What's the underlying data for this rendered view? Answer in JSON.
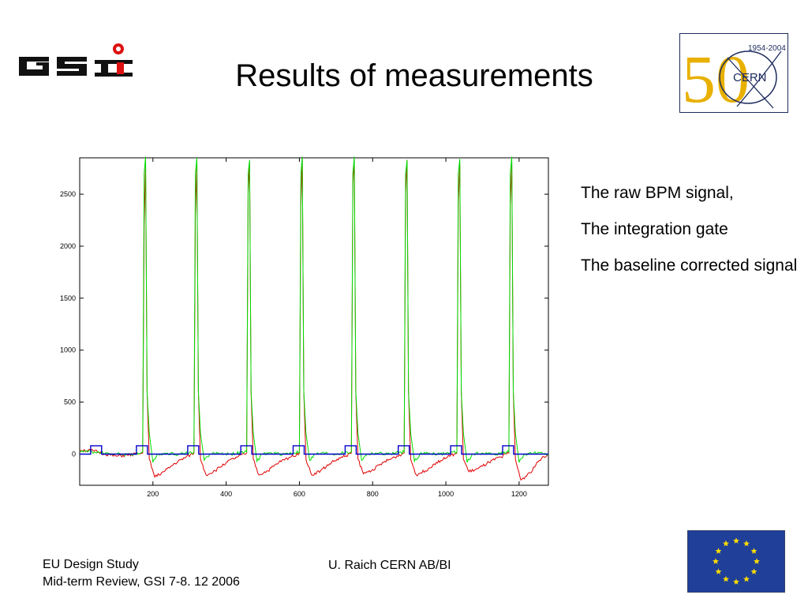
{
  "title": "Results of measurements",
  "logos": {
    "gsi": "GSI",
    "cern_years": "1954-2004",
    "cern_name": "CERN",
    "cern_number": "50"
  },
  "bullets": [
    "The raw BPM signal,",
    "The integration gate",
    "The baseline corrected signal"
  ],
  "footer": {
    "left_line1": "EU Design Study",
    "left_line2": "Mid-term Review, GSI 7-8. 12 2006",
    "center": "U. Raich CERN AB/BI"
  },
  "colors": {
    "raw_signal": "#e00000",
    "corrected_signal": "#00dd00",
    "gate": "#0000cc",
    "cern_blue": "#1d2b5e",
    "cern_gold": "#e8b000",
    "eu_blue": "#1f3f99",
    "eu_star": "#ffdd00"
  },
  "chart_data": {
    "type": "line",
    "title": "",
    "xlabel": "",
    "ylabel": "",
    "xlim": [
      0,
      1280
    ],
    "ylim": [
      -300,
      2850
    ],
    "xticks": [
      200,
      400,
      600,
      800,
      1000,
      1200
    ],
    "yticks": [
      0,
      500,
      1000,
      1500,
      2000,
      2500
    ],
    "pulse_positions": [
      178,
      318,
      462,
      606,
      748,
      892,
      1036,
      1178
    ],
    "series": [
      {
        "key": "raw",
        "peak": 2850,
        "undershoot": -250,
        "x": [
          0,
          40,
          70,
          100,
          130,
          160,
          172,
          176,
          180,
          184,
          190,
          205,
          230,
          260,
          290,
          312,
          316,
          320,
          324,
          330,
          345,
          370,
          400,
          430,
          456,
          460,
          464,
          468,
          474,
          489,
          514,
          544,
          574,
          600,
          604,
          608,
          612,
          618,
          633,
          658,
          688,
          718,
          742,
          746,
          750,
          754,
          760,
          775,
          800,
          830,
          860,
          886,
          890,
          894,
          898,
          904,
          919,
          944,
          974,
          1004,
          1030,
          1034,
          1038,
          1042,
          1048,
          1063,
          1088,
          1118,
          1148,
          1172,
          1176,
          1180,
          1184,
          1190,
          1205,
          1230,
          1255,
          1280
        ],
        "y": [
          40,
          30,
          0,
          -20,
          -10,
          0,
          10,
          2200,
          2800,
          600,
          -50,
          -220,
          -170,
          -90,
          -30,
          10,
          2300,
          2800,
          600,
          -50,
          -200,
          -160,
          -80,
          -30,
          10,
          2500,
          2800,
          600,
          -50,
          -200,
          -160,
          -80,
          -30,
          10,
          2400,
          2850,
          600,
          -50,
          -200,
          -160,
          -80,
          -30,
          10,
          2600,
          2850,
          600,
          -50,
          -190,
          -150,
          -80,
          -30,
          10,
          2500,
          2830,
          600,
          -50,
          -200,
          -160,
          -80,
          -30,
          10,
          2400,
          2800,
          600,
          -50,
          -170,
          -140,
          -80,
          -30,
          10,
          2400,
          2800,
          600,
          -50,
          -250,
          -180,
          -60,
          0
        ]
      },
      {
        "key": "corrected",
        "peak": 2860,
        "undershoot": -80,
        "x": [
          0,
          40,
          70,
          100,
          130,
          160,
          172,
          176,
          180,
          184,
          190,
          200,
          215,
          240,
          270,
          312,
          316,
          320,
          324,
          330,
          340,
          355,
          380,
          410,
          456,
          460,
          464,
          468,
          474,
          484,
          499,
          524,
          554,
          600,
          604,
          608,
          612,
          618,
          628,
          643,
          668,
          698,
          742,
          746,
          750,
          754,
          760,
          770,
          785,
          810,
          840,
          886,
          890,
          894,
          898,
          904,
          914,
          929,
          954,
          984,
          1030,
          1034,
          1038,
          1042,
          1048,
          1058,
          1073,
          1098,
          1128,
          1172,
          1176,
          1180,
          1184,
          1190,
          1200,
          1215,
          1240,
          1280
        ],
        "y": [
          30,
          20,
          10,
          0,
          0,
          0,
          20,
          2700,
          2860,
          600,
          200,
          -80,
          0,
          10,
          0,
          20,
          2700,
          2850,
          600,
          200,
          -60,
          0,
          10,
          0,
          20,
          2700,
          2830,
          600,
          200,
          -70,
          0,
          10,
          0,
          20,
          2700,
          2860,
          600,
          200,
          -60,
          0,
          10,
          0,
          20,
          2700,
          2860,
          600,
          200,
          -60,
          0,
          10,
          0,
          20,
          2700,
          2830,
          600,
          200,
          -70,
          0,
          10,
          0,
          20,
          2700,
          2840,
          600,
          200,
          -80,
          0,
          10,
          0,
          20,
          2700,
          2860,
          600,
          200,
          -80,
          0,
          10,
          0
        ]
      },
      {
        "key": "gate",
        "x": [
          0,
          30,
          30,
          60,
          60,
          155,
          155,
          185,
          185,
          295,
          295,
          325,
          325,
          440,
          440,
          470,
          470,
          583,
          583,
          613,
          613,
          725,
          725,
          755,
          755,
          870,
          870,
          900,
          900,
          1013,
          1013,
          1043,
          1043,
          1155,
          1155,
          1185,
          1185,
          1280
        ],
        "y": [
          0,
          0,
          80,
          80,
          0,
          0,
          80,
          80,
          0,
          0,
          80,
          80,
          0,
          0,
          80,
          80,
          0,
          0,
          80,
          80,
          0,
          0,
          80,
          80,
          0,
          0,
          80,
          80,
          0,
          0,
          80,
          80,
          0,
          0,
          80,
          80,
          0,
          0
        ]
      }
    ]
  }
}
